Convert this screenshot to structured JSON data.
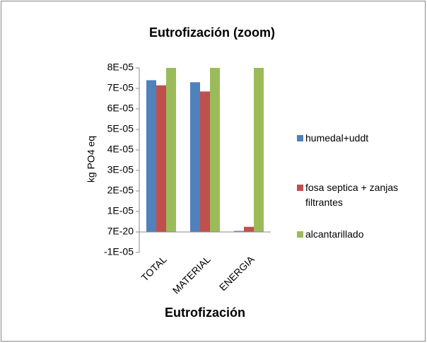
{
  "chart_data": {
    "type": "bar",
    "title": "Eutrofización (zoom)",
    "x_label": "Eutrofización",
    "y_label": "kg PO4 eq",
    "categories": [
      "TOTAL",
      "MATERIAL",
      "ENERGIA"
    ],
    "series": [
      {
        "name": "humedal+uddt",
        "color": "#4f81bd",
        "values": [
          7.4e-05,
          7.3e-05,
          5e-07
        ]
      },
      {
        "name": "fosa septica + zanjas filtrantes",
        "color": "#c0504d",
        "values": [
          7.15e-05,
          6.85e-05,
          2.5e-06
        ]
      },
      {
        "name": "alcantarillado",
        "color": "#9bbb59",
        "values": [
          8e-05,
          8e-05,
          8e-05
        ]
      }
    ],
    "ylim": [
      -1e-05,
      8e-05
    ],
    "yticks": [
      {
        "value": -1e-05,
        "label": "-1E-05"
      },
      {
        "value": 7e-20,
        "label": "7E-20"
      },
      {
        "value": 1e-05,
        "label": "1E-05"
      },
      {
        "value": 2e-05,
        "label": "2E-05"
      },
      {
        "value": 3e-05,
        "label": "3E-05"
      },
      {
        "value": 4e-05,
        "label": "4E-05"
      },
      {
        "value": 5e-05,
        "label": "5E-05"
      },
      {
        "value": 6e-05,
        "label": "6E-05"
      },
      {
        "value": 7e-05,
        "label": "7E-05"
      },
      {
        "value": 8e-05,
        "label": "8E-05"
      }
    ],
    "grid": false,
    "legend": "right"
  }
}
